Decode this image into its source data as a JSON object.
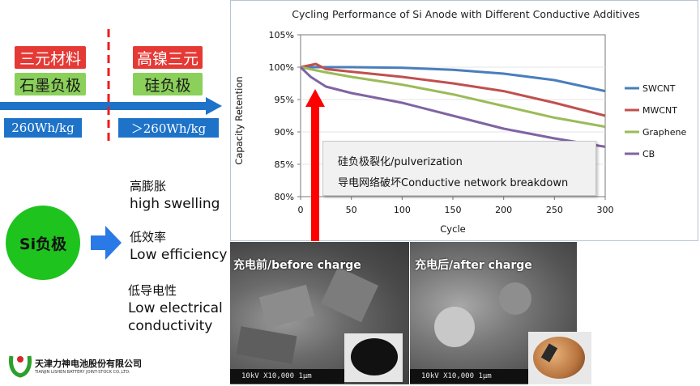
{
  "left_panel": {
    "red_labels": [
      "三元材料",
      "高镍三元"
    ],
    "green_labels": [
      "石墨负极",
      "硅负极"
    ],
    "blue_labels": [
      "260Wh/kg",
      "＞260Wh/kg"
    ]
  },
  "si_section": {
    "circle_label": "Si负极",
    "features": [
      {
        "cn": "高膨胀",
        "en": "high swelling"
      },
      {
        "cn": "低效率",
        "en": "Low efficiency"
      },
      {
        "cn": "低导电性",
        "en": "Low electrical conductivity"
      }
    ]
  },
  "logo": {
    "company_cn": "天津力神电池股份有限公司",
    "company_en": "TIANJIN LISHEN BATTERY JOINT-STOCK CO.,LTD."
  },
  "callout": {
    "line1": "硅负极裂化/pulverization",
    "line2": "导电网络破坏Conductive network breakdown"
  },
  "sem": {
    "before_label": "充电前/before charge",
    "after_label": "充电后/after charge",
    "scale_text": "10kV  X10,000    1μm"
  },
  "colors": {
    "red_label": "#e53935",
    "green_label": "#8ad05a",
    "blue_label": "#1e73c8",
    "circle": "#1ec31e",
    "arrow": "#ff0000"
  },
  "chart_data": {
    "type": "line",
    "title": "Cycling Performance of Si Anode with Different Conductive Additives",
    "xlabel": "Cycle",
    "ylabel": "Capacity Retention",
    "xlim": [
      0,
      300
    ],
    "ylim": [
      80,
      105
    ],
    "xticks": [
      "0",
      "50",
      "100",
      "150",
      "200",
      "250",
      "300"
    ],
    "yticks": [
      "80%",
      "85%",
      "90%",
      "95%",
      "100%",
      "105%"
    ],
    "legend_position": "right",
    "series": [
      {
        "name": "SWCNT",
        "color": "#4a7ebb",
        "x": [
          0,
          25,
          50,
          100,
          150,
          200,
          250,
          300
        ],
        "values": [
          100,
          100,
          100,
          99.9,
          99.6,
          99,
          98,
          96.3
        ]
      },
      {
        "name": "MWCNT",
        "color": "#c0504d",
        "x": [
          0,
          15,
          25,
          50,
          100,
          150,
          200,
          250,
          300
        ],
        "values": [
          100,
          100.5,
          99.7,
          99.3,
          98.5,
          97.5,
          96.3,
          94.5,
          92.5
        ]
      },
      {
        "name": "Graphene",
        "color": "#9bbb59",
        "x": [
          0,
          25,
          50,
          100,
          150,
          200,
          250,
          300
        ],
        "values": [
          100,
          99.2,
          98.5,
          97.3,
          95.8,
          94,
          92.2,
          90.8
        ]
      },
      {
        "name": "CB",
        "color": "#8064a2",
        "x": [
          0,
          10,
          25,
          50,
          100,
          150,
          200,
          250,
          300
        ],
        "values": [
          100,
          98.5,
          97,
          96,
          94.5,
          92.5,
          90.5,
          89,
          87.7
        ]
      }
    ]
  }
}
